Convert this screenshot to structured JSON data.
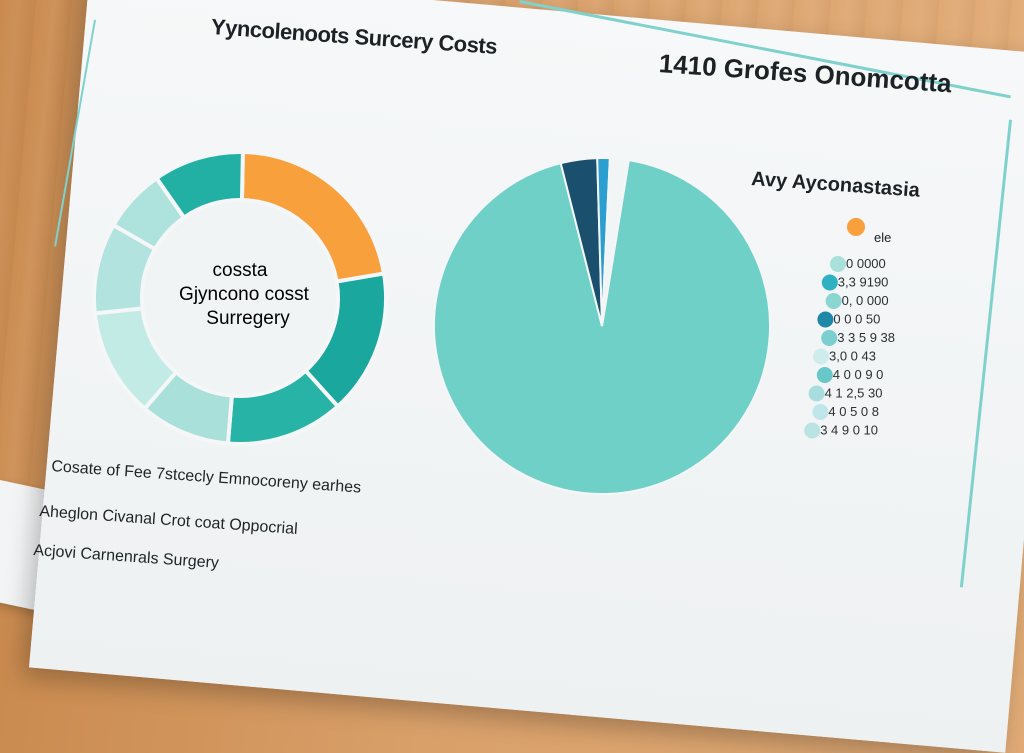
{
  "document": {
    "title_left": "Yyncolenoots Surcery Costs",
    "title_right": "1410 Grofes Onomcotta",
    "legend_title": "Avy Ayconastasia",
    "footnotes": [
      "Cosate of Fee 7stcecly Emnocoreny earhes",
      "Aheglon Civanal Crot coat Oppocrial",
      "Acjovi Carnenrals Surgery"
    ]
  },
  "chart_data": [
    {
      "type": "pie",
      "variant": "donut",
      "center_label": [
        "cossta",
        "Gjyncono cosst",
        "Surregery"
      ],
      "slices": [
        {
          "value": 22,
          "color": "#f7a03c"
        },
        {
          "value": 16,
          "color": "#1aa79d"
        },
        {
          "value": 13,
          "color": "#27b3a6"
        },
        {
          "value": 10,
          "color": "#a9e0da"
        },
        {
          "value": 12,
          "color": "#c3ebe6"
        },
        {
          "value": 10,
          "color": "#b2e3de"
        },
        {
          "value": 7,
          "color": "#aee2dc"
        },
        {
          "value": 10,
          "color": "#22b0a5"
        }
      ]
    },
    {
      "type": "pie",
      "slices": [
        {
          "value": 93.5,
          "color": "#6fd0c8"
        },
        {
          "value": 3.5,
          "color": "#1a4f6e"
        },
        {
          "value": 1.2,
          "color": "#2b9fd0"
        },
        {
          "value": 1.8,
          "color": "#f1f5f6"
        }
      ],
      "legend": {
        "key_label": "ele",
        "items": [
          {
            "label": "0 0000",
            "color": "#a9e0da"
          },
          {
            "label": "3,3 9190",
            "color": "#2fb0c3"
          },
          {
            "label": "0, 0 000",
            "color": "#8ad7d2"
          },
          {
            "label": "0 0 0 50",
            "color": "#1f87a8"
          },
          {
            "label": "3 3 5 9 38",
            "color": "#7ccfd0"
          },
          {
            "label": "3,0 0 43",
            "color": "#cdeceb"
          },
          {
            "label": "4 0 0 9 0",
            "color": "#68c7c9"
          },
          {
            "label": "4 1 2,5 30",
            "color": "#a8dde0"
          },
          {
            "label": "4 0 5 0 8",
            "color": "#bfe6e8"
          },
          {
            "label": "3 4 9 0 10",
            "color": "#b9e4e2"
          }
        ]
      }
    }
  ]
}
